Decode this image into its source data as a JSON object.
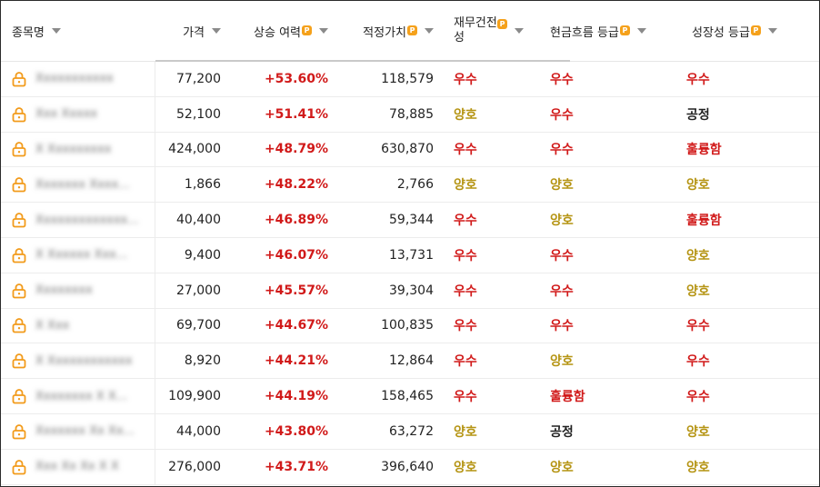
{
  "header": {
    "name": "종목명",
    "price": "가격",
    "upside": "상승 여력",
    "fair_value": "적정가치",
    "financial": "재무건전성",
    "cashflow": "현금흐름 등급",
    "growth": "성장성 등급",
    "premium_badge": "P"
  },
  "colors": {
    "upside_red": "#d11a1a",
    "grade_excellent": "#d11a1a",
    "grade_good": "#b59413",
    "grade_fair": "#222222",
    "lock_orange": "#f29b1b"
  },
  "rows": [
    {
      "name": "Xxxxxxxxxxx",
      "price": "77,200",
      "upside": "+53.60%",
      "fair": "118,579",
      "financial": "우수",
      "cashflow": "우수",
      "growth": "우수"
    },
    {
      "name": "Xxx Xxxxx",
      "price": "52,100",
      "upside": "+51.41%",
      "fair": "78,885",
      "financial": "양호",
      "cashflow": "우수",
      "growth": "공정"
    },
    {
      "name": "X Xxxxxxxxx",
      "price": "424,000",
      "upside": "+48.79%",
      "fair": "630,870",
      "financial": "우수",
      "cashflow": "우수",
      "growth": "훌륭함"
    },
    {
      "name": "Xxxxxxx Xxxx...",
      "price": "1,866",
      "upside": "+48.22%",
      "fair": "2,766",
      "financial": "양호",
      "cashflow": "양호",
      "growth": "양호"
    },
    {
      "name": "Xxxxxxxxxxxxx...",
      "price": "40,400",
      "upside": "+46.89%",
      "fair": "59,344",
      "financial": "우수",
      "cashflow": "양호",
      "growth": "훌륭함"
    },
    {
      "name": "X Xxxxxx Xxx...",
      "price": "9,400",
      "upside": "+46.07%",
      "fair": "13,731",
      "financial": "우수",
      "cashflow": "우수",
      "growth": "양호"
    },
    {
      "name": "Xxxxxxxx",
      "price": "27,000",
      "upside": "+45.57%",
      "fair": "39,304",
      "financial": "우수",
      "cashflow": "우수",
      "growth": "양호"
    },
    {
      "name": "X Xxx",
      "price": "69,700",
      "upside": "+44.67%",
      "fair": "100,835",
      "financial": "우수",
      "cashflow": "우수",
      "growth": "우수"
    },
    {
      "name": "X Xxxxxxxxxxxx",
      "price": "8,920",
      "upside": "+44.21%",
      "fair": "12,864",
      "financial": "우수",
      "cashflow": "양호",
      "growth": "우수"
    },
    {
      "name": "Xxxxxxxx X X...",
      "price": "109,900",
      "upside": "+44.19%",
      "fair": "158,465",
      "financial": "우수",
      "cashflow": "훌륭함",
      "growth": "우수"
    },
    {
      "name": "Xxxxxxx Xx Xx...",
      "price": "44,000",
      "upside": "+43.80%",
      "fair": "63,272",
      "financial": "양호",
      "cashflow": "공정",
      "growth": "양호"
    },
    {
      "name": "Xxx Xx Xx X X",
      "price": "276,000",
      "upside": "+43.71%",
      "fair": "396,640",
      "financial": "양호",
      "cashflow": "양호",
      "growth": "양호"
    }
  ]
}
